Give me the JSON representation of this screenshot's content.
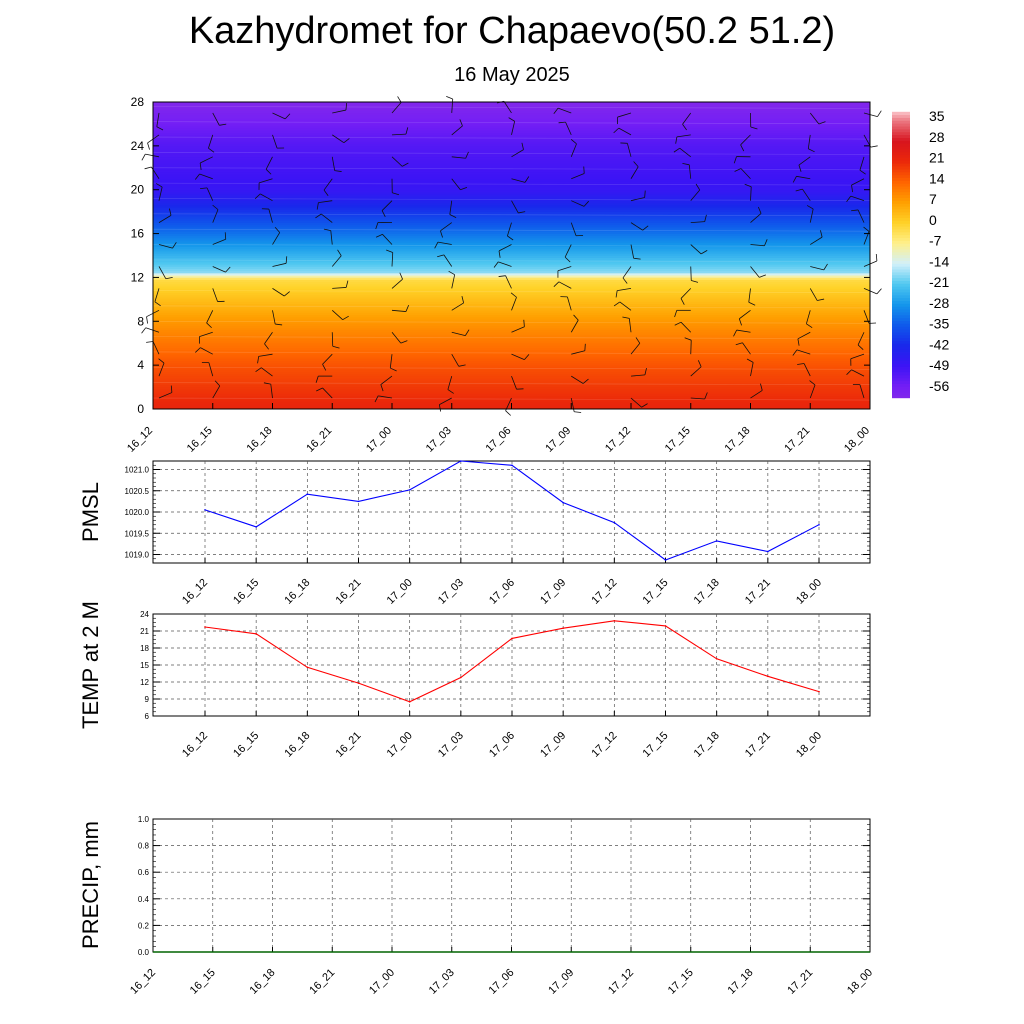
{
  "title": "Kazhydromet for Chapaevo(50.2 51.2)",
  "subtitle": "16 May 2025",
  "time_labels": [
    "16_12",
    "16_15",
    "16_18",
    "16_21",
    "17_00",
    "17_03",
    "17_06",
    "17_09",
    "17_12",
    "17_15",
    "17_18",
    "17_21",
    "18_00"
  ],
  "chart_data": [
    {
      "type": "heatmap",
      "description": "Temperature cross-section with wind barbs",
      "x": [
        "16_12",
        "16_15",
        "16_18",
        "16_21",
        "17_00",
        "17_03",
        "17_06",
        "17_09",
        "17_12",
        "17_15",
        "17_18",
        "17_21",
        "18_00"
      ],
      "y_ticks": [
        0,
        4,
        8,
        12,
        16,
        20,
        24,
        28
      ],
      "ylim": [
        0,
        28
      ],
      "colorbar_labels": [
        "35",
        "28",
        "21",
        "14",
        "7",
        "0",
        "-7",
        "-14",
        "-21",
        "-28",
        "-35",
        "-42",
        "-49",
        "-56"
      ],
      "color_range": [
        -60,
        38
      ],
      "profile": [
        {
          "level": 0,
          "temp": 22
        },
        {
          "level": 4,
          "temp": 16
        },
        {
          "level": 8,
          "temp": 8
        },
        {
          "level": 11.8,
          "temp": -2
        },
        {
          "level": 12.5,
          "temp": -18
        },
        {
          "level": 16,
          "temp": -32
        },
        {
          "level": 20,
          "temp": -48
        },
        {
          "level": 24,
          "temp": -52
        },
        {
          "level": 28,
          "temp": -60
        }
      ]
    },
    {
      "type": "line",
      "ylabel": "PMSL",
      "x": [
        "16_12",
        "16_15",
        "16_18",
        "16_21",
        "17_00",
        "17_03",
        "17_06",
        "17_09",
        "17_12",
        "17_15",
        "17_18",
        "17_21",
        "18_00"
      ],
      "values": [
        1020.05,
        1019.65,
        1020.42,
        1020.25,
        1020.52,
        1021.2,
        1021.1,
        1020.22,
        1019.75,
        1018.87,
        1019.32,
        1019.07,
        1019.7
      ],
      "yticks": [
        "1019.0",
        "1019.5",
        "1020.0",
        "1020.5",
        "1021.0"
      ],
      "ylim": [
        1018.8,
        1021.2
      ],
      "color": "#0000ff"
    },
    {
      "type": "line",
      "ylabel": "TEMP at 2 M",
      "x": [
        "16_12",
        "16_15",
        "16_18",
        "16_21",
        "17_00",
        "17_03",
        "17_06",
        "17_09",
        "17_12",
        "17_15",
        "17_18",
        "17_21",
        "18_00"
      ],
      "values": [
        21.7,
        20.5,
        14.6,
        11.8,
        8.5,
        12.8,
        19.7,
        21.5,
        22.8,
        21.9,
        16.1,
        13.0,
        10.3
      ],
      "yticks": [
        "6",
        "9",
        "12",
        "15",
        "18",
        "21",
        "24"
      ],
      "ylim": [
        6,
        24
      ],
      "color": "#ff0000"
    },
    {
      "type": "line",
      "ylabel": "PRECIP, mm",
      "x": [
        "16_12",
        "16_15",
        "16_18",
        "16_21",
        "17_00",
        "17_03",
        "17_06",
        "17_09",
        "17_12",
        "17_15",
        "17_18",
        "17_21",
        "18_00"
      ],
      "values": [
        0,
        0,
        0,
        0,
        0,
        0,
        0,
        0,
        0,
        0,
        0,
        0,
        0
      ],
      "yticks": [
        "0.0",
        "0.2",
        "0.4",
        "0.6",
        "0.8",
        "1.0"
      ],
      "ylim": [
        0,
        1
      ],
      "color": "#006400"
    }
  ]
}
